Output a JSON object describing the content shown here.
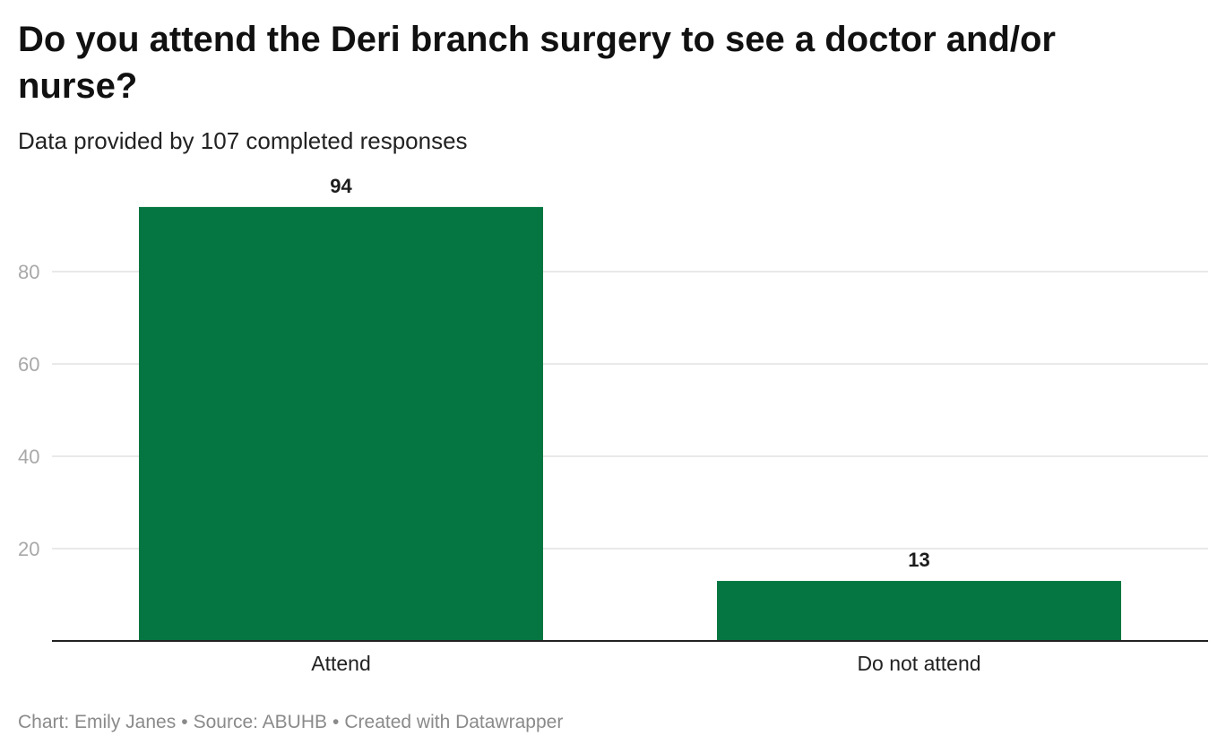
{
  "title": "Do you attend the Deri branch surgery to see a doctor and/or nurse?",
  "subtitle": "Data provided by 107 completed responses",
  "footer": {
    "chart_credit": "Chart: Emily Janes",
    "source": "Source: ABUHB",
    "made_with": "Created with Datawrapper"
  },
  "colors": {
    "bar": "#057641",
    "grid": "#e2e2e2",
    "axis": "#222222",
    "tick_label": "#a8a8a8",
    "data_label": "#1d1d1d"
  },
  "chart_data": {
    "type": "bar",
    "categories": [
      "Attend",
      "Do not attend"
    ],
    "values": [
      94,
      13
    ],
    "title": "Do you attend the Deri branch surgery to see a doctor and/or nurse?",
    "subtitle": "Data provided by 107 completed responses",
    "xlabel": "",
    "ylabel": "",
    "ylim": [
      0,
      100
    ],
    "yticks": [
      20,
      40,
      60,
      80
    ],
    "grid": true,
    "data_labels": true,
    "legend": "none"
  }
}
